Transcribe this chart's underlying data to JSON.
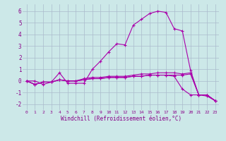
{
  "xlabel": "Windchill (Refroidissement éolien,°C)",
  "ylabel": "",
  "xlim": [
    -0.5,
    23.5
  ],
  "ylim": [
    -2.5,
    6.6
  ],
  "xticks": [
    0,
    1,
    2,
    3,
    4,
    5,
    6,
    7,
    8,
    9,
    10,
    11,
    12,
    13,
    14,
    15,
    16,
    17,
    18,
    19,
    20,
    21,
    22,
    23
  ],
  "yticks": [
    -2,
    -1,
    0,
    1,
    2,
    3,
    4,
    5,
    6
  ],
  "background_color": "#cce8e8",
  "grid_color": "#aabbcc",
  "line_color": "#aa00aa",
  "lines": [
    [
      0.0,
      0.0,
      -0.3,
      -0.1,
      0.7,
      -0.2,
      -0.2,
      -0.2,
      1.0,
      1.7,
      2.5,
      3.2,
      3.1,
      4.8,
      5.3,
      5.8,
      6.0,
      5.9,
      4.5,
      4.3,
      0.9,
      -1.2,
      -1.2,
      -1.7
    ],
    [
      0.0,
      -0.3,
      -0.1,
      -0.1,
      0.1,
      0.0,
      0.0,
      0.1,
      0.2,
      0.2,
      0.3,
      0.3,
      0.3,
      0.4,
      0.4,
      0.5,
      0.5,
      0.5,
      0.5,
      0.5,
      0.6,
      -1.2,
      -1.2,
      -1.7
    ],
    [
      0.0,
      -0.3,
      -0.1,
      -0.1,
      0.1,
      0.0,
      0.0,
      0.1,
      0.2,
      0.2,
      0.3,
      0.3,
      0.3,
      0.4,
      0.4,
      0.5,
      0.5,
      0.5,
      0.4,
      -0.7,
      -1.2,
      -1.2,
      -1.3,
      -1.7
    ],
    [
      0.0,
      -0.3,
      -0.1,
      -0.1,
      0.1,
      0.0,
      0.0,
      0.2,
      0.3,
      0.3,
      0.4,
      0.4,
      0.4,
      0.5,
      0.6,
      0.6,
      0.7,
      0.7,
      0.7,
      0.6,
      0.7,
      -1.2,
      -1.2,
      -1.7
    ]
  ]
}
